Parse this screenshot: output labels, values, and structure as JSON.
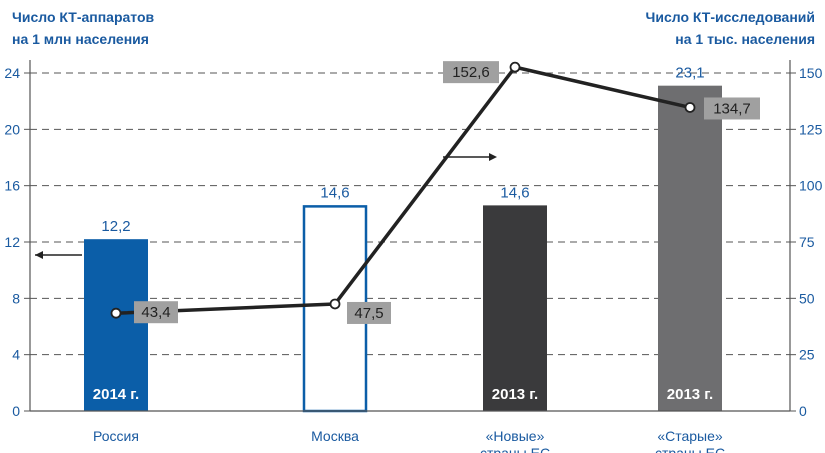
{
  "chart_data": {
    "type": "bar",
    "left_axis_title": [
      "Число КТ-аппаратов",
      "на 1 млн населения"
    ],
    "right_axis_title": [
      "Число КТ-исследований",
      "на 1 тыс. населения"
    ],
    "left_ylim": [
      0,
      24
    ],
    "left_ticks": [
      "0",
      "4",
      "8",
      "12",
      "16",
      "20",
      "24"
    ],
    "right_ylim": [
      0,
      150
    ],
    "right_ticks": [
      "0",
      "25",
      "50",
      "75",
      "100",
      "125",
      "150"
    ],
    "categories": [
      [
        "Россия"
      ],
      [
        "Москва"
      ],
      [
        "«Новые»",
        "страны ЕС"
      ],
      [
        "«Старые»",
        "страны ЕС"
      ]
    ],
    "bars": {
      "values": [
        12.2,
        14.6,
        14.6,
        23.1
      ],
      "labels": [
        "12,2",
        "14,6",
        "14,6",
        "23,1"
      ],
      "years": [
        "2014 г.",
        "",
        "2013 г.",
        "2013 г."
      ],
      "styles": [
        "solid",
        "outline",
        "solid",
        "solid"
      ],
      "colors": [
        "#0b5ea8",
        "#ffffff",
        "#3a3a3c",
        "#6e6e70"
      ]
    },
    "line": {
      "values": [
        43.4,
        47.5,
        152.6,
        134.7
      ],
      "labels": [
        "43,4",
        "47,5",
        "152,6",
        "134,7"
      ],
      "color": "#222222"
    },
    "grid": "dashed horizontal",
    "colors": {
      "axis_text": "#1a5aa0",
      "label_box": "#a0a0a0",
      "bar_value_label": "#1a5aa0"
    }
  }
}
